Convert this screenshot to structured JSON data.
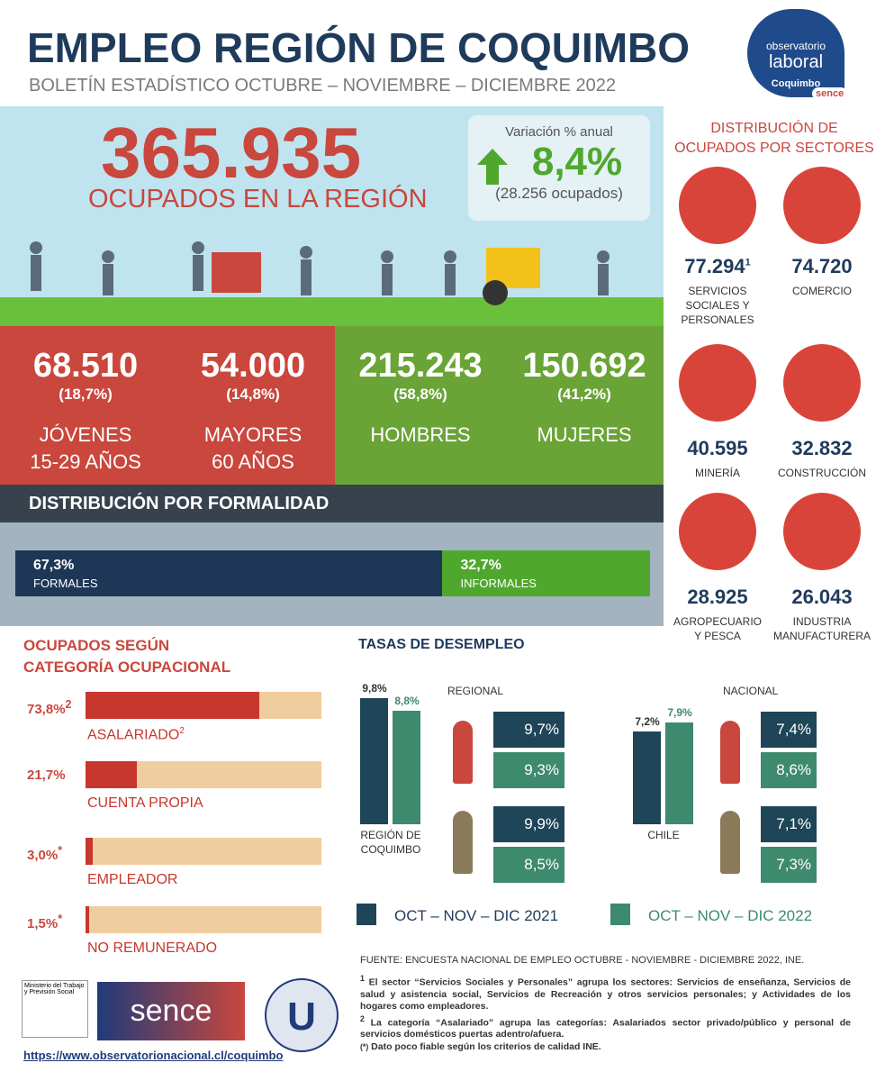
{
  "header": {
    "title": "EMPLEO REGIÓN DE COQUIMBO",
    "subtitle": "BOLETÍN ESTADÍSTICO OCTUBRE – NOVIEMBRE – DICIEMBRE 2022"
  },
  "logo": {
    "line1": "observatorio",
    "line2": "laboral",
    "region": "Coquimbo",
    "brand": "sence"
  },
  "hero": {
    "total": "365.935",
    "total_label": "OCUPADOS EN LA REGIÓN",
    "variation": {
      "label": "Variación % anual",
      "value": "8,4%",
      "detail": "(28.256 ocupados)"
    }
  },
  "groups": [
    {
      "value": "68.510",
      "share": "(18,7%)",
      "lines": [
        "JÓVENES",
        "15-29 AÑOS"
      ]
    },
    {
      "value": "54.000",
      "share": "(14,8%)",
      "lines": [
        "MAYORES",
        "60 AÑOS"
      ]
    },
    {
      "value": "215.243",
      "share": "(58,8%)",
      "lines": [
        "HOMBRES"
      ]
    },
    {
      "value": "150.692",
      "share": "(41,2%)",
      "lines": [
        "MUJERES"
      ]
    }
  ],
  "formality": {
    "title": "DISTRIBUCIÓN POR FORMALIDAD",
    "segments": [
      {
        "value": 67.3,
        "label": "67,3%",
        "name": "FORMALES",
        "color": "#1e3756"
      },
      {
        "value": 32.7,
        "label": "32,7%",
        "name": "INFORMALES",
        "color": "#4fa82d"
      }
    ]
  },
  "sectors": {
    "title": [
      "DISTRIBUCIÓN DE",
      "OCUPADOS POR SECTORES"
    ],
    "items": [
      {
        "value": "77.294",
        "note": "1",
        "name": [
          "SERVICIOS",
          "SOCIALES Y",
          "PERSONALES"
        ]
      },
      {
        "value": "74.720",
        "name": [
          "COMERCIO"
        ]
      },
      {
        "value": "40.595",
        "name": [
          "MINERÍA"
        ]
      },
      {
        "value": "32.832",
        "name": [
          "CONSTRUCCIÓN"
        ]
      },
      {
        "value": "28.925",
        "name": [
          "AGROPECUARIO",
          "Y PESCA"
        ]
      },
      {
        "value": "26.043",
        "name": [
          "INDUSTRIA",
          "MANUFACTURERA"
        ]
      }
    ]
  },
  "categories": {
    "title": [
      "OCUPADOS SEGÚN",
      "CATEGORÍA OCUPACIONAL"
    ],
    "items": [
      {
        "value": 73.8,
        "label": "73,8%",
        "name": "ASALARIADO",
        "note": "2"
      },
      {
        "value": 21.7,
        "label": "21,7%",
        "name": "CUENTA PROPIA"
      },
      {
        "value": 3.0,
        "label": "3,0%",
        "note": "*",
        "name": "EMPLEADOR"
      },
      {
        "value": 1.5,
        "label": "1,5%",
        "note": "*",
        "name": "NO REMUNERADO"
      }
    ]
  },
  "unemployment": {
    "title": "TASAS DE DESEMPLEO",
    "panels": [
      {
        "title": "REGIONAL",
        "area": [
          "REGIÓN DE",
          "COQUIMBO"
        ],
        "total": [
          {
            "value": 9.8,
            "label": "9,8%"
          },
          {
            "value": 8.8,
            "label": "8,8%"
          }
        ],
        "women": [
          "9,7%",
          "9,3%"
        ],
        "men": [
          "9,9%",
          "8,5%"
        ]
      },
      {
        "title": "NACIONAL",
        "area": [
          "CHILE"
        ],
        "total": [
          {
            "value": 7.2,
            "label": "7,2%"
          },
          {
            "value": 7.9,
            "label": "7,9%"
          }
        ],
        "women": [
          "7,4%",
          "8,6%"
        ],
        "men": [
          "7,1%",
          "7,3%"
        ]
      }
    ],
    "legend": [
      {
        "name": "OCT – NOV – DIC 2021",
        "color": "#1e4558"
      },
      {
        "name": "OCT – NOV – DIC 2022",
        "color": "#3e8a6e"
      }
    ]
  },
  "footer": {
    "source": "FUENTE: ENCUESTA NACIONAL DE EMPLEO OCTUBRE - NOVIEMBRE - DICIEMBRE 2022, INE.",
    "notes": [
      {
        "mark": "1",
        "text": "El sector “Servicios Sociales y Personales” agrupa los sectores: Servicios de enseñanza, Servicios de salud y asistencia social, Servicios de Recreación y otros servicios personales; y Actividades de los hogares como empleadores."
      },
      {
        "mark": "2",
        "text": "La categoría “Asalariado” agrupa las categorías: Asalariados sector privado/público y personal de servicios domésticos puertas adentro/afuera."
      },
      {
        "mark": "(*)",
        "text": "Dato poco fiable según los criterios de calidad INE."
      }
    ],
    "ministry": "Ministerio del Trabajo y Previsión Social",
    "sence": "sence",
    "url": "https://www.observatorionacional.cl/coquimbo"
  }
}
